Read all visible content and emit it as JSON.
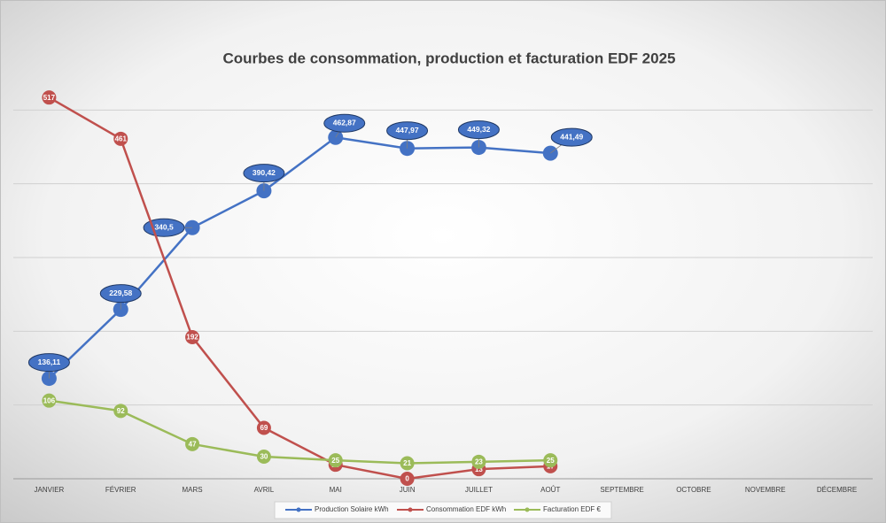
{
  "chart_data": {
    "type": "line",
    "title": "Courbes de consommation, production et facturation EDF 2025",
    "categories": [
      "JANVIER",
      "FÉVRIER",
      "MARS",
      "AVRIL",
      "MAI",
      "JUIN",
      "JUILLET",
      "AOÛT",
      "SEPTEMBRE",
      "OCTOBRE",
      "NOVEMBRE",
      "DÉCEMBRE"
    ],
    "series": [
      {
        "name": "Production Solaire kWh",
        "color": "#4472c4",
        "values": [
          136.11,
          229.58,
          340.5,
          390.42,
          462.87,
          447.97,
          449.32,
          441.49,
          null,
          null,
          null,
          null
        ],
        "value_labels": [
          "136,11",
          "229,58",
          "340,5",
          "390,42",
          "462,87",
          "447,97",
          "449,32",
          "441,49",
          null,
          null,
          null,
          null
        ]
      },
      {
        "name": "Consommation EDF kWh",
        "color": "#c0504d",
        "values": [
          517,
          461,
          192,
          69,
          19,
          0,
          13,
          17,
          null,
          null,
          null,
          null
        ]
      },
      {
        "name": "Facturation EDF €",
        "color": "#9bbb59",
        "values": [
          106,
          92,
          47,
          30,
          25,
          21,
          23,
          25,
          null,
          null,
          null,
          null
        ]
      }
    ],
    "ylim": [
      0,
      600
    ],
    "yticks": [
      0,
      100,
      200,
      300,
      400,
      500
    ],
    "grid": true,
    "legend": "bottom"
  }
}
